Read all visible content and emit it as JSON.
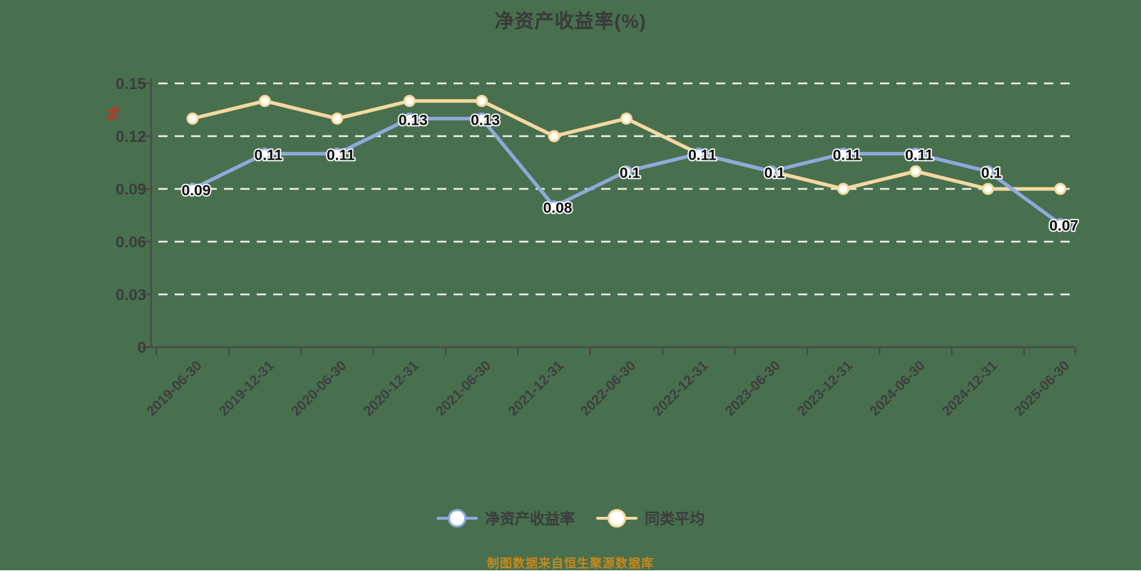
{
  "page": {
    "background_color": "#48704F"
  },
  "chart_data": {
    "type": "line",
    "title": "净资产收益率(%)",
    "y_unit": "%",
    "source_note": "制图数据来自恒生聚源数据库",
    "categories": [
      "2019-06-30",
      "2019-12-31",
      "2020-06-30",
      "2020-12-31",
      "2021-06-30",
      "2021-12-31",
      "2022-06-30",
      "2022-12-31",
      "2023-06-30",
      "2023-12-31",
      "2024-06-30",
      "2024-12-31",
      "2025-06-30"
    ],
    "series": [
      {
        "key": "roe",
        "name": "净资产收益率",
        "color": "#8FA9DB",
        "marker_fill": "#FFFFFF",
        "values": [
          0.09,
          0.11,
          0.11,
          0.13,
          0.13,
          0.08,
          0.1,
          0.11,
          0.1,
          0.11,
          0.11,
          0.1,
          0.07
        ],
        "labels": [
          "0.09",
          "0.11",
          "0.11",
          "0.13",
          "0.13",
          "0.08",
          "0.1",
          "0.11",
          "0.1",
          "0.11",
          "0.11",
          "0.1",
          "0.07"
        ],
        "show_point_labels": true
      },
      {
        "key": "peer-average",
        "name": "同类平均",
        "color": "#F6D9A1",
        "marker_fill": "#FFFEF6",
        "values": [
          0.13,
          0.14,
          0.13,
          0.14,
          0.14,
          0.12,
          0.13,
          0.11,
          0.1,
          0.09,
          0.1,
          0.09,
          0.09
        ],
        "labels": [],
        "show_point_labels": false
      }
    ],
    "y_axis": {
      "min": 0,
      "max": 0.15,
      "tick_values": [
        0,
        0.03,
        0.06,
        0.09,
        0.12,
        0.15
      ],
      "tick_labels": [
        "0",
        "0.03",
        "0.06",
        "0.09",
        "0.12",
        "0.15"
      ]
    },
    "grid": {
      "show": true,
      "style": "dashed"
    },
    "legend_position": "bottom",
    "colors": {
      "grid_line": "#EDEDEA",
      "axis": "#4B4B4B",
      "point_label": "#0D0D0D",
      "tick_label": "#3C3C3C",
      "x_tick_label": "#3F3F3F",
      "title": "#3A3A3A",
      "source": "#C5881C",
      "y_unit": "#DC241F"
    }
  }
}
